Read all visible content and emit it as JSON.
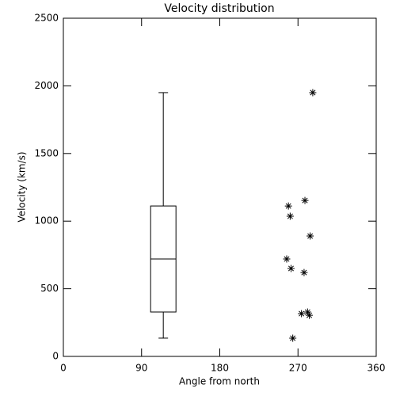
{
  "chart_data": {
    "type": "scatter",
    "title": "Velocity distribution",
    "x_label": "Angle from north",
    "y_label": "Velocity (km/s)",
    "xlim": [
      0,
      360
    ],
    "xticks": [
      0,
      90,
      180,
      270,
      360
    ],
    "ylim": [
      0,
      2500
    ],
    "yticks": [
      0,
      500,
      1000,
      1500,
      2000,
      2500
    ],
    "color": "#000000",
    "x": [
      287,
      278,
      259,
      261,
      284,
      257,
      262,
      277,
      274,
      281,
      283,
      264
    ],
    "values": [
      1950,
      1153,
      1112,
      1036,
      890,
      720,
      650,
      620,
      316,
      328,
      304,
      135
    ],
    "boxplot": {
      "x": 115,
      "min": 135,
      "q1": 328,
      "median": 720,
      "q3": 1112,
      "max": 1950
    }
  }
}
